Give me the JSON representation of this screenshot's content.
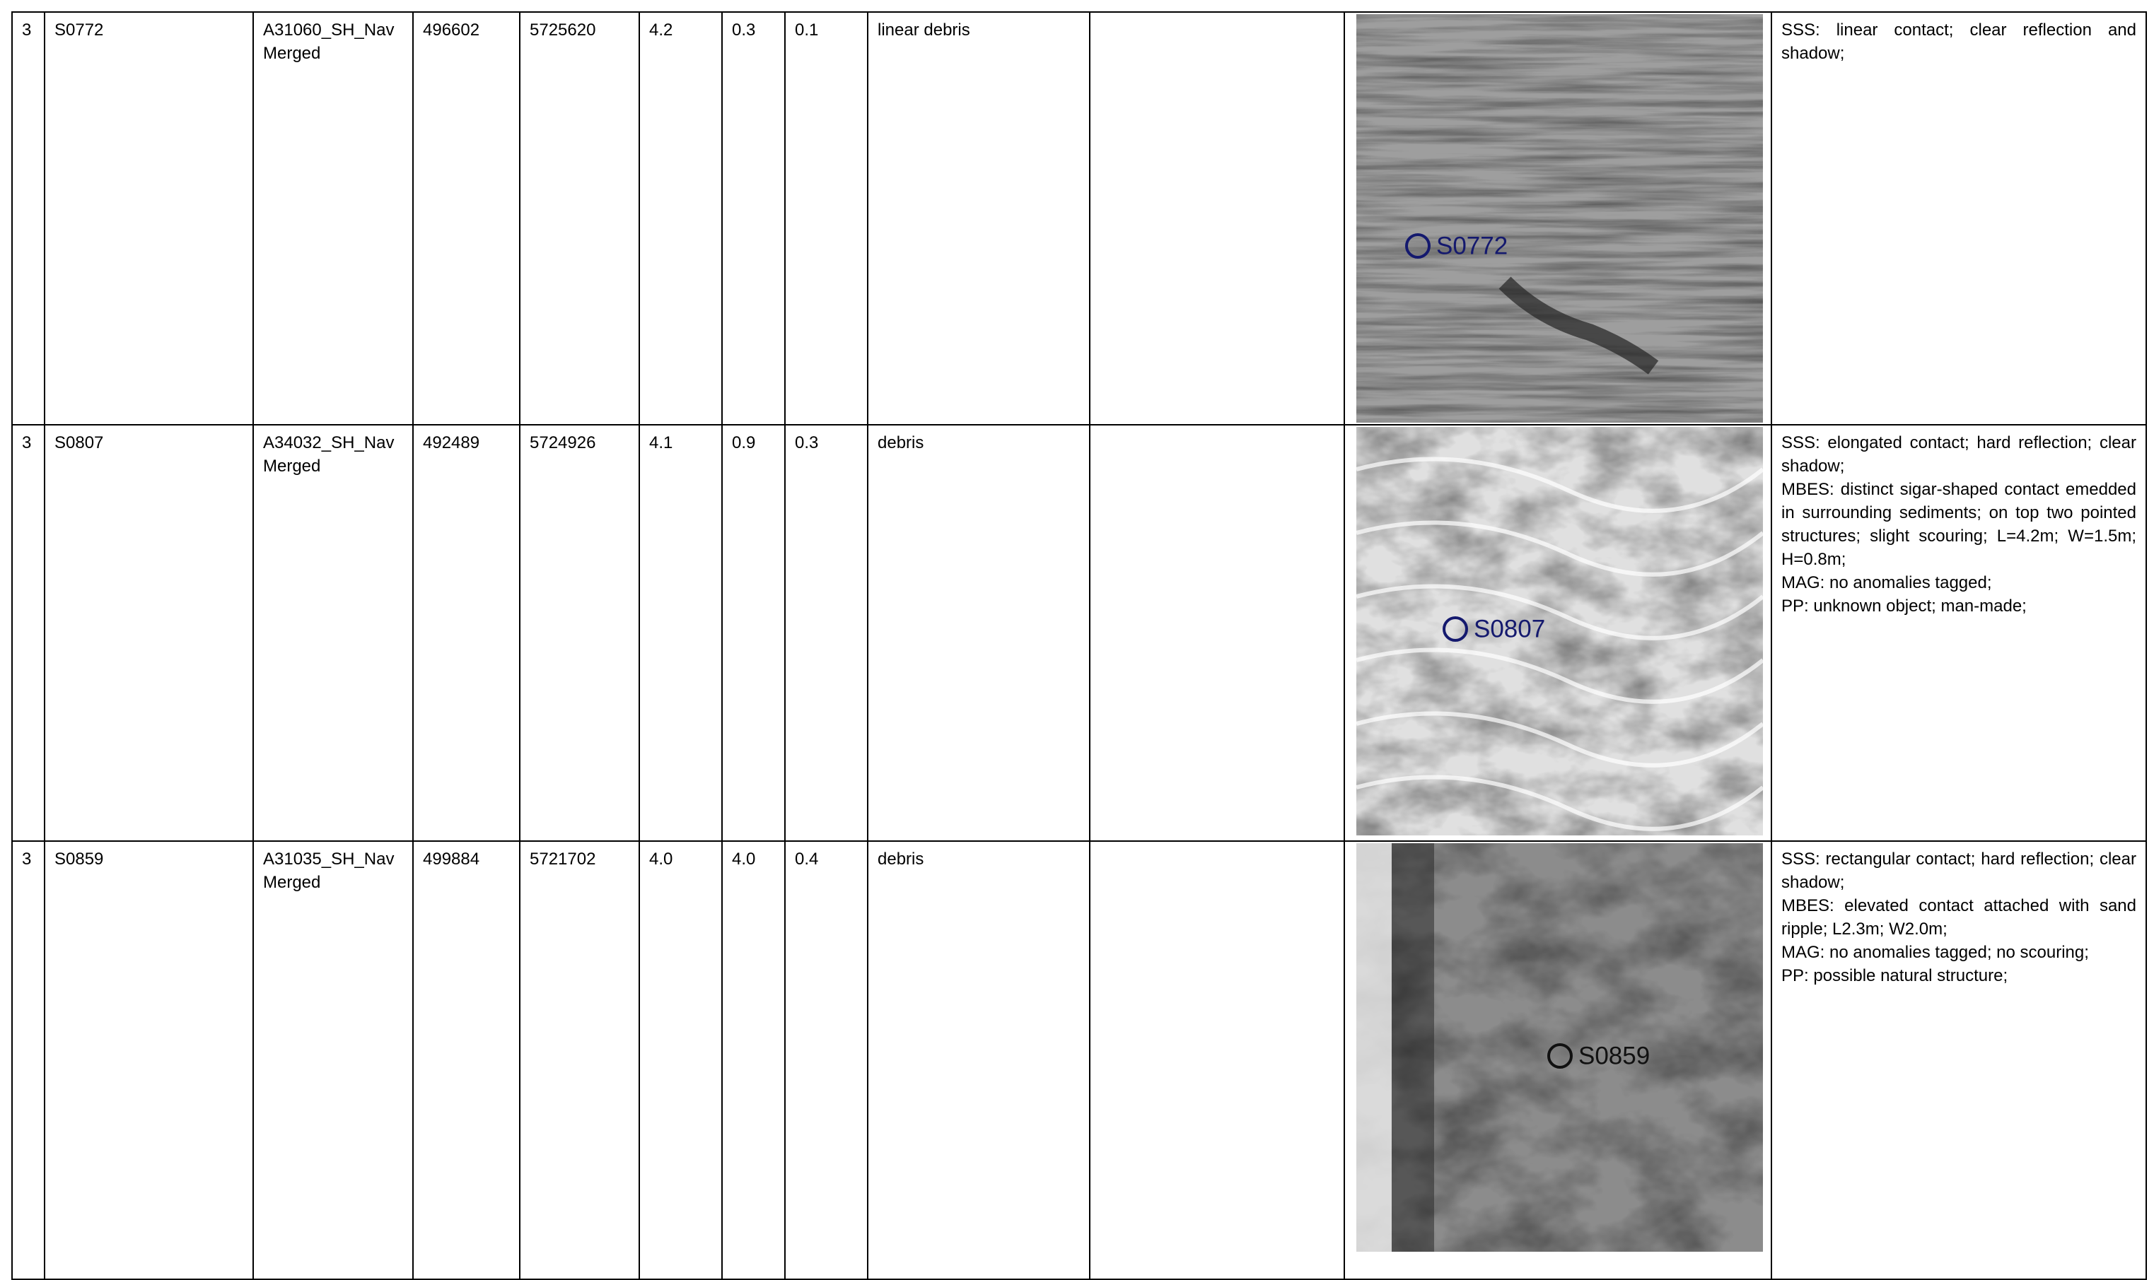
{
  "table": {
    "rows": [
      {
        "cells": [
          "3",
          "S0772",
          "A31060_SH_Nav Merged",
          "496602",
          "5725620",
          "4.2",
          "0.3",
          "0.1",
          "linear debris"
        ],
        "image_label": "S0772",
        "remarks": [
          "SSS: linear contact; clear reflection and shadow;"
        ]
      },
      {
        "cells": [
          "3",
          "S0807",
          "A34032_SH_Nav Merged",
          "492489",
          "5724926",
          "4.1",
          "0.9",
          "0.3",
          "debris"
        ],
        "image_label": "S0807",
        "remarks": [
          "SSS: elongated contact; hard reflection; clear shadow;",
          "MBES: distinct sigar-shaped contact emedded in surrounding sediments; on top two pointed structures; slight scouring; L=4.2m; W=1.5m; H=0.8m;",
          "MAG: no anomalies tagged;",
          "PP: unknown object; man-made;"
        ]
      },
      {
        "cells": [
          "3",
          "S0859",
          "A31035_SH_Nav Merged",
          "499884",
          "5721702",
          "4.0",
          "4.0",
          "0.4",
          "debris"
        ],
        "image_label": "S0859",
        "remarks": [
          "SSS: rectangular contact; hard reflection; clear shadow;",
          "MBES: elevated contact attached with sand ripple; L2.3m; W2.0m;",
          "MAG: no anomalies tagged; no scouring;",
          "PP: possible natural structure;"
        ]
      }
    ]
  }
}
